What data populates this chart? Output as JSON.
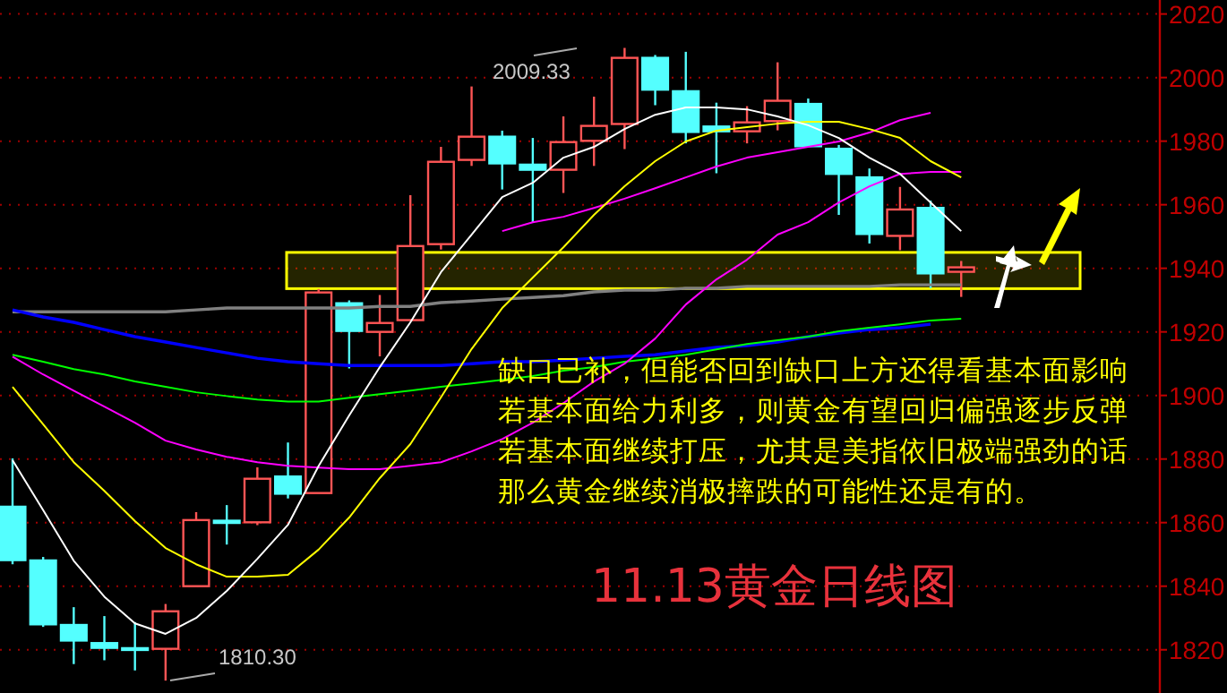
{
  "chart_data": {
    "type": "candlestick",
    "title": "11.13黄金日线图",
    "categories": [
      null,
      null,
      null,
      null,
      null,
      null,
      null,
      null,
      null,
      null,
      null,
      null,
      null,
      null,
      null,
      null,
      null,
      null,
      null,
      null,
      null,
      null,
      null,
      null,
      null,
      null,
      null,
      null,
      null,
      null,
      null,
      null
    ],
    "ohlc": [
      [
        1865.0,
        1880.2,
        1846.9,
        1848.2
      ],
      [
        1848.1,
        1849.2,
        1827.2,
        1828.0
      ],
      [
        1827.8,
        1833.4,
        1815.5,
        1822.9
      ],
      [
        1822.1,
        1830.6,
        1816.7,
        1820.6
      ],
      [
        1820.5,
        1828.7,
        1813.5,
        1820.0
      ],
      [
        1820.3,
        1834.4,
        1810.3,
        1832.1
      ],
      [
        1840.0,
        1863.3,
        1840.0,
        1860.8
      ],
      [
        1860.6,
        1865.5,
        1853.1,
        1859.9
      ],
      [
        1860.1,
        1877.4,
        1859.2,
        1873.8
      ],
      [
        1874.5,
        1885.2,
        1867.6,
        1869.1
      ],
      [
        1869.3,
        1933.5,
        1869.3,
        1932.4
      ],
      [
        1929.0,
        1929.9,
        1908.5,
        1920.3
      ],
      [
        1920.0,
        1931.6,
        1912.3,
        1922.8
      ],
      [
        1923.7,
        1963.0,
        1923.7,
        1947.0
      ],
      [
        1947.6,
        1978.2,
        1945.9,
        1973.5
      ],
      [
        1974.1,
        1997.2,
        1972.2,
        1981.4
      ],
      [
        1981.4,
        1983.3,
        1964.8,
        1973.0
      ],
      [
        1972.6,
        1981.0,
        1954.5,
        1971.0
      ],
      [
        1971.0,
        1987.8,
        1963.7,
        1979.7
      ],
      [
        1980.1,
        1994.0,
        1972.2,
        1984.8
      ],
      [
        1985.4,
        2009.33,
        1977.5,
        2006.2
      ],
      [
        2006.2,
        2007.1,
        1991.3,
        1996.2
      ],
      [
        1995.7,
        2008.1,
        1979.3,
        1982.9
      ],
      [
        1984.6,
        1992.1,
        1969.9,
        1983.1
      ],
      [
        1983.1,
        1991.0,
        1979.3,
        1985.9
      ],
      [
        1986.3,
        2004.8,
        1983.4,
        1992.7
      ],
      [
        1991.7,
        1993.4,
        1978.4,
        1978.4
      ],
      [
        1977.6,
        1978.8,
        1956.8,
        1969.7
      ],
      [
        1968.6,
        1971.4,
        1947.8,
        1950.8
      ],
      [
        1950.2,
        1965.6,
        1945.7,
        1958.5
      ],
      [
        1959.0,
        1961.3,
        1933.7,
        1938.4
      ],
      [
        1938.9,
        1942.3,
        1931.0,
        1940.3
      ]
    ],
    "colors": [
      "#54ffff",
      "#54ffff",
      "#54ffff",
      "#54ffff",
      "#54ffff",
      "#ff5555",
      "#ff5555",
      "#54ffff",
      "#ff5555",
      "#54ffff",
      "#ff5555",
      "#54ffff",
      "#ff5555",
      "#ff5555",
      "#ff5555",
      "#ff5555",
      "#54ffff",
      "#54ffff",
      "#ff5555",
      "#ff5555",
      "#ff5555",
      "#54ffff",
      "#54ffff",
      "#54ffff",
      "#ff5555",
      "#ff5555",
      "#54ffff",
      "#54ffff",
      "#54ffff",
      "#ff5555",
      "#54ffff",
      "#ff5555"
    ],
    "series": [
      {
        "type": "line",
        "color": "#808080",
        "values": [
          1926.3,
          1926.3,
          1926.3,
          1926.3,
          1926.3,
          1926.3,
          1926.9,
          1927.5,
          1927.5,
          1927.5,
          1927.5,
          1927.5,
          1928.0,
          1928.0,
          1929.2,
          1929.7,
          1930.3,
          1930.8,
          1931.4,
          1932.6,
          1933.1,
          1933.1,
          1933.7,
          1933.7,
          1934.3,
          1934.3,
          1934.3,
          1934.3,
          1934.3,
          1934.8,
          1934.8,
          1934.8
        ]
      },
      {
        "type": "line",
        "color": "#0000ff",
        "values": [
          1926.9,
          1924.7,
          1923.0,
          1920.7,
          1918.5,
          1916.8,
          1915.1,
          1913.4,
          1911.7,
          1910.6,
          1910.0,
          1909.4,
          1909.4,
          1909.4,
          1909.4,
          1910.0,
          1910.6,
          1910.6,
          1911.1,
          1911.7,
          1912.3,
          1912.8,
          1914.0,
          1915.1,
          1915.7,
          1916.8,
          1918.5,
          1919.6,
          1920.7,
          1921.3,
          1922.4,
          null
        ]
      },
      {
        "type": "line",
        "color": "#00ff00",
        "values": [
          1912.8,
          1910.6,
          1908.3,
          1906.6,
          1904.4,
          1902.7,
          1901.0,
          1899.8,
          1898.7,
          1898.1,
          1898.1,
          1899.3,
          1900.4,
          1901.5,
          1902.7,
          1903.8,
          1904.9,
          1906.1,
          1907.8,
          1908.9,
          1910.6,
          1911.7,
          1912.8,
          1914.5,
          1916.2,
          1917.4,
          1918.5,
          1920.2,
          1921.3,
          1922.4,
          1923.6,
          1924.1
        ]
      },
      {
        "type": "line",
        "color": "#ff00ff",
        "values": [
          1912.2,
          1906.6,
          1901.5,
          1896.5,
          1891.4,
          1885.8,
          1883.0,
          1880.7,
          1879.0,
          1877.9,
          1877.3,
          1876.8,
          1876.8,
          1877.9,
          1879.0,
          1882.4,
          1886.3,
          1891.4,
          1897.6,
          1904.4,
          1910.0,
          1917.9,
          1928.6,
          1936.5,
          1942.7,
          1950.6,
          1954.5,
          1960.7,
          1965.8,
          1969.7,
          1970.3,
          1970.3
        ]
      },
      {
        "type": "line",
        "color": "#ff00ff",
        "values": [
          null,
          null,
          null,
          null,
          null,
          null,
          null,
          null,
          null,
          null,
          null,
          null,
          null,
          null,
          null,
          null,
          1951.7,
          1954.5,
          1956.2,
          1959.0,
          1961.9,
          1965.2,
          1968.6,
          1972.0,
          1974.8,
          1976.5,
          1978.2,
          1979.9,
          1982.7,
          1986.6,
          1988.9,
          null
        ]
      },
      {
        "type": "line",
        "color": "#ffff00",
        "values": [
          1902.7,
          1890.9,
          1879.0,
          1870.0,
          1860.5,
          1852.0,
          1846.9,
          1843.0,
          1843.0,
          1843.6,
          1851.5,
          1861.6,
          1874.0,
          1884.7,
          1899.4,
          1914.6,
          1927.5,
          1937.1,
          1946.6,
          1956.8,
          1965.8,
          1973.7,
          1979.9,
          1983.3,
          1984.4,
          1985.5,
          1986.1,
          1986.1,
          1983.8,
          1981.0,
          1973.7,
          1968.6
        ]
      },
      {
        "type": "line",
        "color": "#ffffff",
        "values": [
          1879.6,
          1863.9,
          1848.0,
          1836.7,
          1828.3,
          1825.0,
          1830.0,
          1838.5,
          1848.6,
          1859.3,
          1877.8,
          1893.7,
          1908.9,
          1923.0,
          1938.8,
          1950.6,
          1962.4,
          1966.9,
          1974.8,
          1978.2,
          1983.8,
          1988.3,
          1990.6,
          1990.6,
          1990.0,
          1987.8,
          1985.0,
          1981.0,
          1974.8,
          1969.7,
          1960.7,
          1951.7
        ]
      }
    ],
    "bands": [
      {
        "axis": "y",
        "from": 1933.6,
        "to": 1945,
        "color": "#ffff00"
      }
    ],
    "ylim": [
      1806.4,
      2024.4
    ],
    "yticks": [
      1820,
      1840,
      1860,
      1880,
      1900,
      1920,
      1940,
      1960,
      1980,
      2000,
      2020
    ],
    "grid": "y",
    "tick_labels": "y",
    "annotations": [
      "2009.33",
      "1810.30",
      "缺口已补，但能否回到缺口上方还得看基本面影响",
      "若基本面给力利多，则黄金有望回归偏强逐步反弹",
      "若基本面继续打压，尤其是美指依旧极端强劲的话",
      "那么黄金继续消极摔跌的可能性还是有的。"
    ]
  }
}
